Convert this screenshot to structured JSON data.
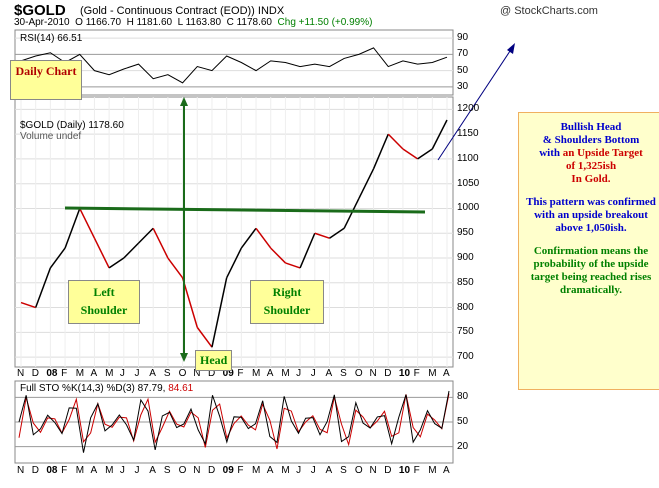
{
  "header": {
    "symbol": "$GOLD",
    "description": "(Gold - Continuous Contract (EOD)) INDX",
    "source": "@ StockCharts.com",
    "date": "30-Apr-2010",
    "ohlc": "O 1166.70  H 1181.60  L 1163.80  C 1178.60",
    "change": "Chg +11.50 (+0.99%)",
    "change_color": "#008000"
  },
  "rsi_panel": {
    "label": "RSI(14) 66.51",
    "ticks": [
      "90",
      "70",
      "50",
      "30"
    ]
  },
  "price_panel": {
    "legend_line1": "$GOLD (Daily) 1178.60",
    "legend_line2": "Volume undef",
    "ticks": [
      "1200",
      "1150",
      "1100",
      "1050",
      "1000",
      "950",
      "900",
      "850",
      "800",
      "750",
      "700"
    ]
  },
  "sto_panel": {
    "label_prefix": "Full STO %K(14,3) %D(3) ",
    "k_value": "87.79,",
    "d_value": "84.61",
    "ticks": [
      "80",
      "50",
      "20"
    ]
  },
  "time_axis": {
    "labels": [
      "N",
      "D",
      "08",
      "F",
      "M",
      "A",
      "M",
      "J",
      "J",
      "A",
      "S",
      "O",
      "N",
      "D",
      "09",
      "F",
      "M",
      "A",
      "M",
      "J",
      "J",
      "A",
      "S",
      "O",
      "N",
      "D",
      "10",
      "F",
      "M",
      "A"
    ]
  },
  "annotations": {
    "daily_chart": "Daily Chart",
    "left_shoulder": "Left Shoulder",
    "head": "Head",
    "right_shoulder": "Right Shoulder",
    "box_title_1": "Bullish Head",
    "box_title_2": "& Shoulders Bottom",
    "box_title_3_a": "with ",
    "box_title_3_b": "an Upside Target",
    "box_title_4": "of 1,325ish",
    "box_title_5": "In Gold.",
    "box_p2": "This pattern was confirmed with an upside breakout above 1,050ish.",
    "box_p3": "Confirmation means the probability of the upside target being reached rises dramatically."
  },
  "colors": {
    "neckline": "#1a6b1a",
    "head_line": "#1a6b1a",
    "target_arrow": "#000080",
    "price_up": "#000000",
    "price_down": "#cc0000",
    "sto_d": "#cc0000",
    "grid": "#dddddd"
  },
  "chart_data": [
    {
      "type": "line",
      "name": "RSI(14)",
      "ylim": [
        20,
        100
      ],
      "y_ticks": [
        90,
        70,
        50,
        30
      ],
      "x": [
        "N",
        "D",
        "08",
        "F",
        "M",
        "A",
        "M",
        "J",
        "J",
        "A",
        "S",
        "O",
        "N",
        "D",
        "09",
        "F",
        "M",
        "A",
        "M",
        "J",
        "J",
        "A",
        "S",
        "O",
        "N",
        "D",
        "10",
        "F",
        "M",
        "A"
      ],
      "values": [
        62,
        68,
        72,
        60,
        70,
        50,
        45,
        52,
        58,
        40,
        45,
        35,
        55,
        50,
        68,
        60,
        50,
        62,
        60,
        55,
        58,
        55,
        65,
        70,
        78,
        55,
        62,
        58,
        60,
        66.51
      ]
    },
    {
      "type": "line",
      "title": "$GOLD (Daily) 1178.60",
      "ylim": [
        680,
        1225
      ],
      "y_ticks": [
        1200,
        1150,
        1100,
        1050,
        1000,
        950,
        900,
        850,
        800,
        750,
        700
      ],
      "x": [
        "N",
        "D",
        "08",
        "F",
        "M",
        "A",
        "M",
        "J",
        "J",
        "A",
        "S",
        "O",
        "N",
        "D",
        "09",
        "F",
        "M",
        "A",
        "M",
        "J",
        "J",
        "A",
        "S",
        "O",
        "N",
        "D",
        "10",
        "F",
        "M",
        "A"
      ],
      "values": [
        810,
        800,
        880,
        920,
        1000,
        940,
        880,
        900,
        930,
        960,
        900,
        860,
        760,
        720,
        860,
        920,
        960,
        920,
        890,
        880,
        950,
        940,
        960,
        1020,
        1080,
        1150,
        1120,
        1100,
        1120,
        1178.6
      ],
      "neckline_level": 990,
      "target": 1325,
      "breakout_level": 1050
    },
    {
      "type": "line",
      "name": "Full STO %K(14,3) %D(3)",
      "ylim": [
        0,
        100
      ],
      "y_ticks": [
        80,
        50,
        20
      ],
      "k_last": 87.79,
      "d_last": 84.61
    }
  ]
}
